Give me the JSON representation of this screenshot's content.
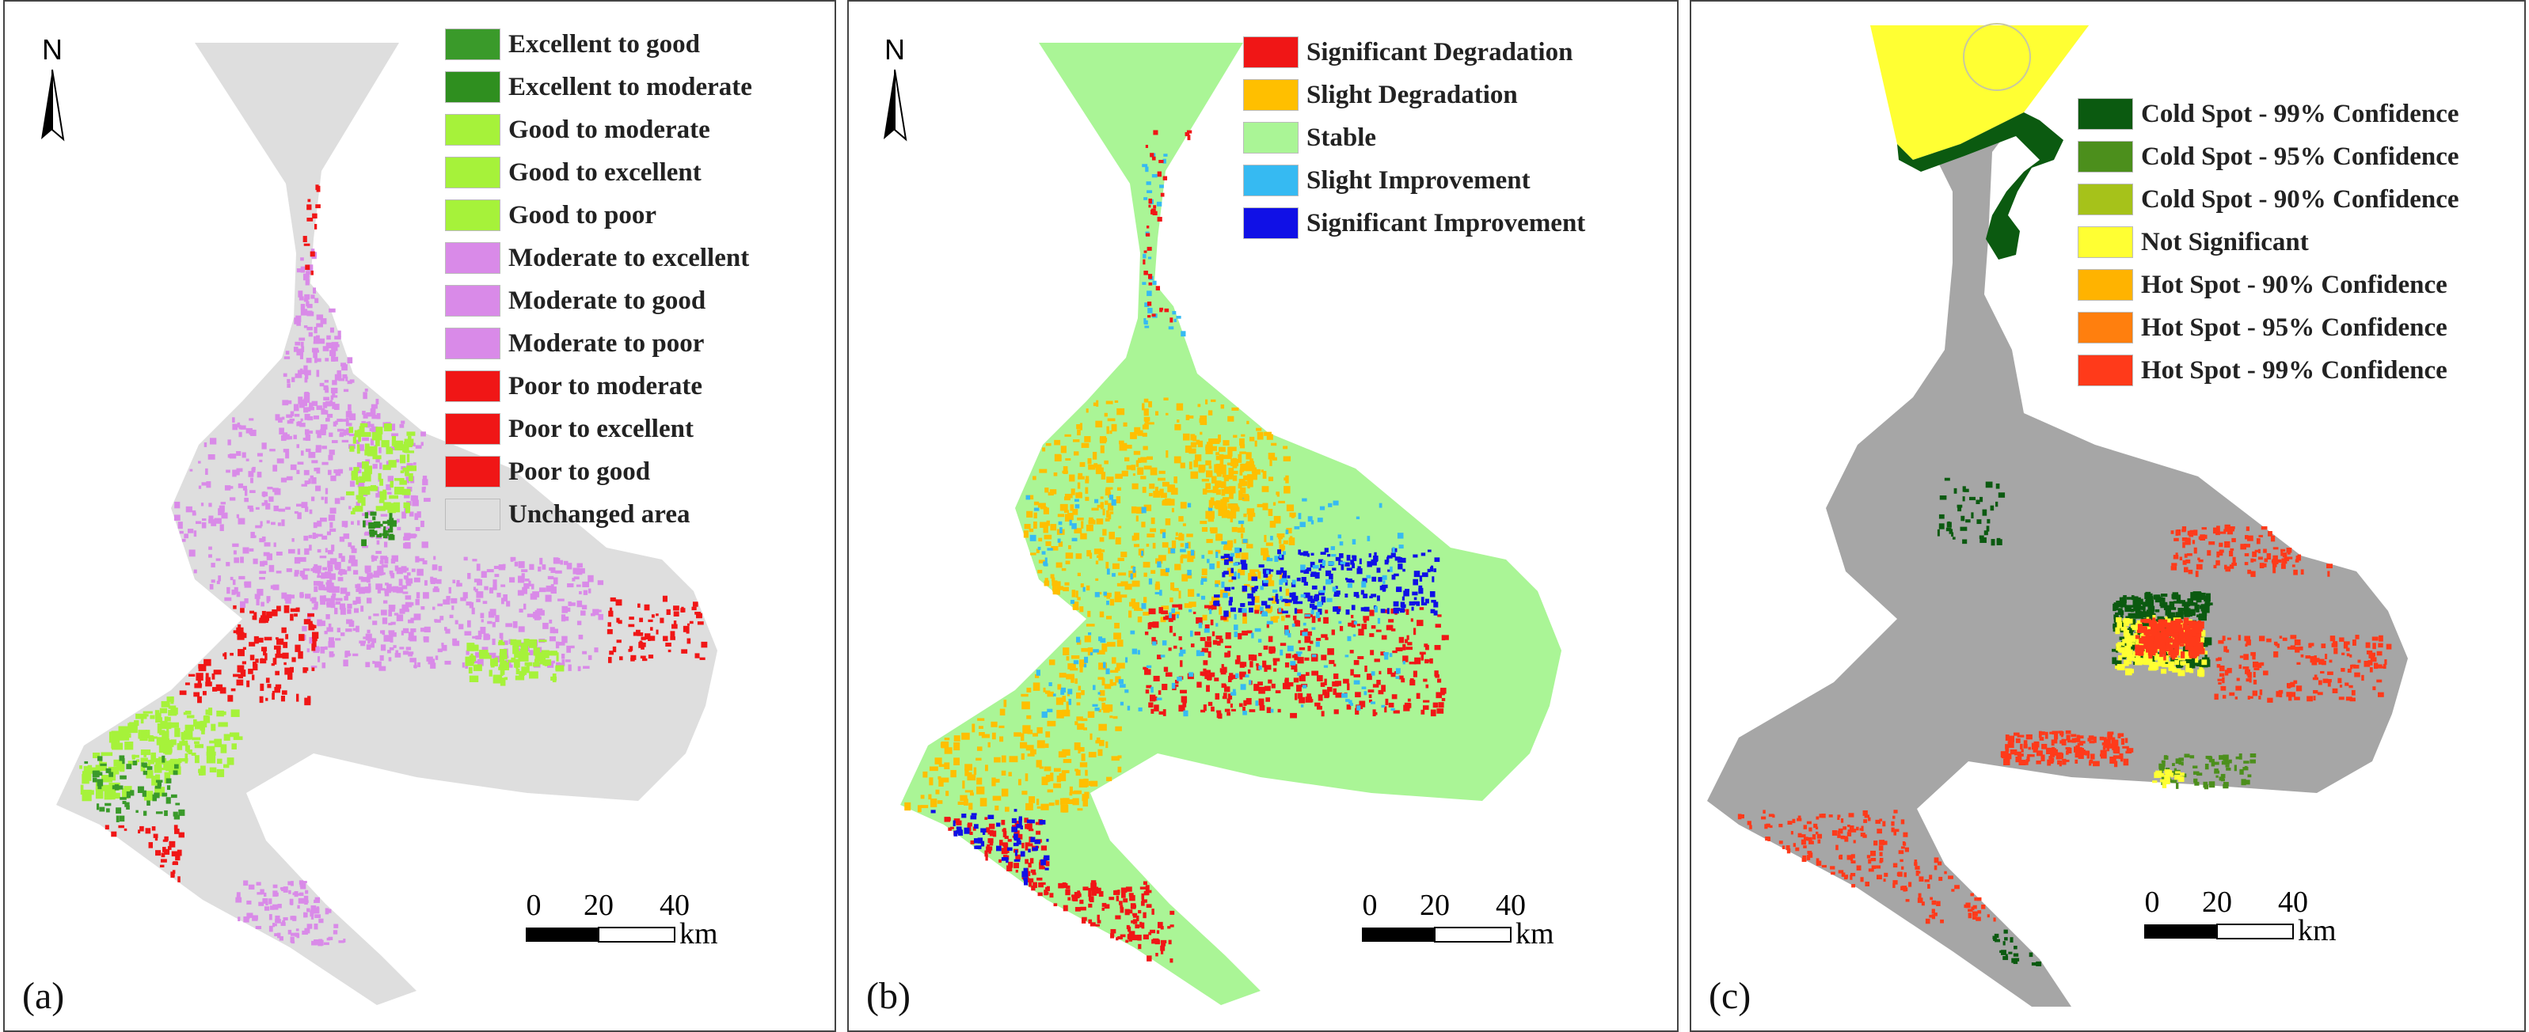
{
  "panels": [
    {
      "label": "(a)",
      "north": "N",
      "legend": [
        {
          "label": "Excellent to good",
          "color": "#3a9a2a"
        },
        {
          "label": "Excellent to moderate",
          "color": "#2f8f1f"
        },
        {
          "label": "Good to  moderate",
          "color": "#a6f23a"
        },
        {
          "label": "Good to excellent",
          "color": "#a6f23a"
        },
        {
          "label": "Good to poor",
          "color": "#a6f23a"
        },
        {
          "label": "Moderate to excellent",
          "color": "#d98ae8"
        },
        {
          "label": "Moderate to good",
          "color": "#d98ae8"
        },
        {
          "label": "Moderate to poor",
          "color": "#d98ae8"
        },
        {
          "label": "Poor to  moderate",
          "color": "#f01616"
        },
        {
          "label": "Poor to excellent",
          "color": "#f01616"
        },
        {
          "label": "Poor to good",
          "color": "#f01616"
        },
        {
          "label": "Unchanged area",
          "color": "#dedede"
        }
      ],
      "scale": {
        "ticks": [
          "0",
          "20",
          "40"
        ],
        "unit": "km"
      },
      "base_color": "#dedede"
    },
    {
      "label": "(b)",
      "north": "N",
      "legend": [
        {
          "label": "Significant Degradation",
          "color": "#f01616"
        },
        {
          "label": "Slight Degradation",
          "color": "#ffbf00"
        },
        {
          "label": "Stable",
          "color": "#aaf596"
        },
        {
          "label": "Slight Improvement",
          "color": "#36baf2"
        },
        {
          "label": "Significant Improvement",
          "color": "#1010e6"
        }
      ],
      "scale": {
        "ticks": [
          "0",
          "20",
          "40"
        ],
        "unit": "km"
      },
      "base_color": "#aaf596"
    },
    {
      "label": "(c)",
      "legend": [
        {
          "label": "Cold Spot - 99% Confidence",
          "color": "#0b5a10"
        },
        {
          "label": "Cold Spot - 95% Confidence",
          "color": "#4c8f1c"
        },
        {
          "label": "Cold Spot - 90% Confidence",
          "color": "#a6c21a"
        },
        {
          "label": "Not Significant",
          "color": "#ffff33"
        },
        {
          "label": "Hot Spot - 90% Confidence",
          "color": "#ffb300"
        },
        {
          "label": "Hot Spot - 95% Confidence",
          "color": "#ff7f0e"
        },
        {
          "label": "Hot Spot - 99% Confidence",
          "color": "#ff3a1a"
        }
      ],
      "scale": {
        "ticks": [
          "0",
          "20",
          "40"
        ],
        "unit": "km"
      },
      "base_color": "#a6a6a6"
    }
  ]
}
